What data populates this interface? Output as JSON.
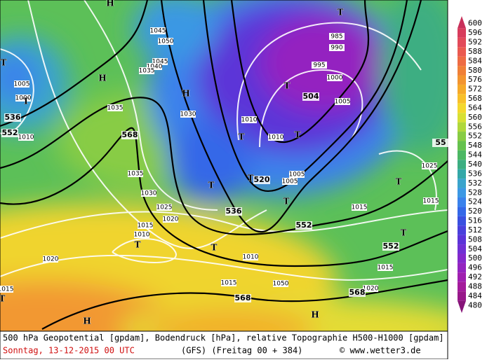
{
  "footer": {
    "description": "500 hPa Geopotential [gpdam], Bodendruck [hPa], relative Topographie H500-H1000 [gpdam]",
    "date": "Sonntag, 13-12-2015  00 UTC",
    "model": "(GFS)  (Freitag 00 + 384)",
    "credit": "© www.wetter3.de"
  },
  "legend": {
    "values": [
      600,
      596,
      592,
      588,
      584,
      580,
      576,
      572,
      568,
      564,
      560,
      556,
      552,
      548,
      544,
      540,
      536,
      532,
      528,
      524,
      520,
      516,
      512,
      508,
      504,
      500,
      496,
      492,
      488,
      484,
      480
    ],
    "colors": [
      "#c8305a",
      "#d83c5c",
      "#e24a5a",
      "#ea5a50",
      "#ee6c44",
      "#f08038",
      "#f39530",
      "#f6aa2a",
      "#f8c02a",
      "#f4d82e",
      "#d8e034",
      "#b0d83c",
      "#88cc44",
      "#66c24e",
      "#4cb864",
      "#3cae82",
      "#34a8a8",
      "#3aa4cc",
      "#3c98e4",
      "#3a82ec",
      "#3468e8",
      "#3a50e0",
      "#4a40dc",
      "#5c34d8",
      "#7030d4",
      "#8428cc",
      "#9424c0",
      "#a020b0",
      "#a41c9c",
      "#98188a",
      "#861478"
    ]
  },
  "map": {
    "geopotential_labels": [
      "536",
      "552",
      "568",
      "520",
      "504",
      "536",
      "552",
      "552",
      "568",
      "568",
      "55"
    ],
    "pressure_labels": [
      "1045",
      "1050",
      "1045",
      "1040",
      "1035",
      "1005",
      "1000",
      "1010",
      "1035",
      "1030",
      "1035",
      "1030",
      "1025",
      "1020",
      "1015",
      "1010",
      "1020",
      "1015",
      "985",
      "990",
      "995",
      "1000",
      "1005",
      "1010",
      "1010",
      "1005",
      "1005",
      "1025",
      "1015",
      "1015",
      "1010",
      "1015",
      "1050",
      "1015",
      "1020"
    ],
    "centers": [
      "H",
      "T",
      "T",
      "H",
      "H",
      "T",
      "T",
      "T",
      "T",
      "T",
      "T",
      "T",
      "T",
      "T",
      "T",
      "T",
      "T",
      "H",
      "H"
    ]
  }
}
